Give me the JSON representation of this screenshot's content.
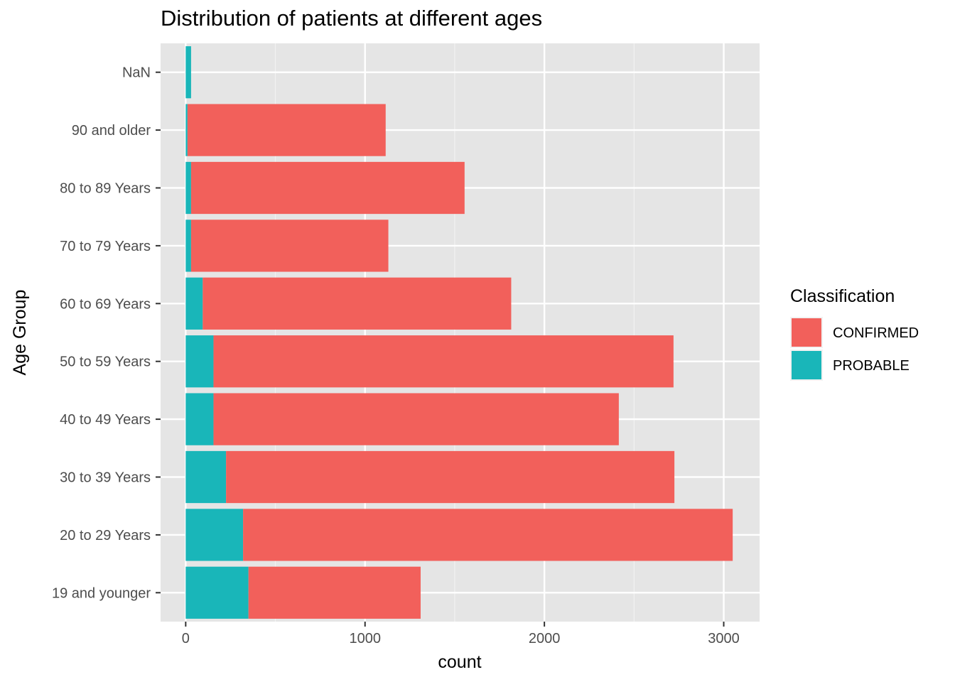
{
  "chart_data": {
    "type": "bar",
    "orientation": "horizontal",
    "stacked": true,
    "title": "Distribution of patients at different ages",
    "xlabel": "count",
    "ylabel": "Age Group",
    "xlim": [
      -140,
      3200
    ],
    "x_ticks": [
      0,
      1000,
      2000,
      3000
    ],
    "grid": true,
    "legend_title": "Classification",
    "legend_position": "right",
    "categories": [
      "19 and younger",
      "20 to 29 Years",
      "30 to 39 Years",
      "40 to 49 Years",
      "50 to 59 Years",
      "60 to 69 Years",
      "70 to 79 Years",
      "80 to 89 Years",
      "90 and older",
      "NaN"
    ],
    "series": [
      {
        "name": "PROBABLE",
        "color": "#19b6b9",
        "values": [
          350,
          320,
          225,
          155,
          155,
          95,
          30,
          30,
          10,
          30
        ]
      },
      {
        "name": "CONFIRMED",
        "color": "#f2605b",
        "values": [
          960,
          2730,
          2500,
          2260,
          2565,
          1720,
          1100,
          1525,
          1105,
          0
        ]
      }
    ]
  }
}
